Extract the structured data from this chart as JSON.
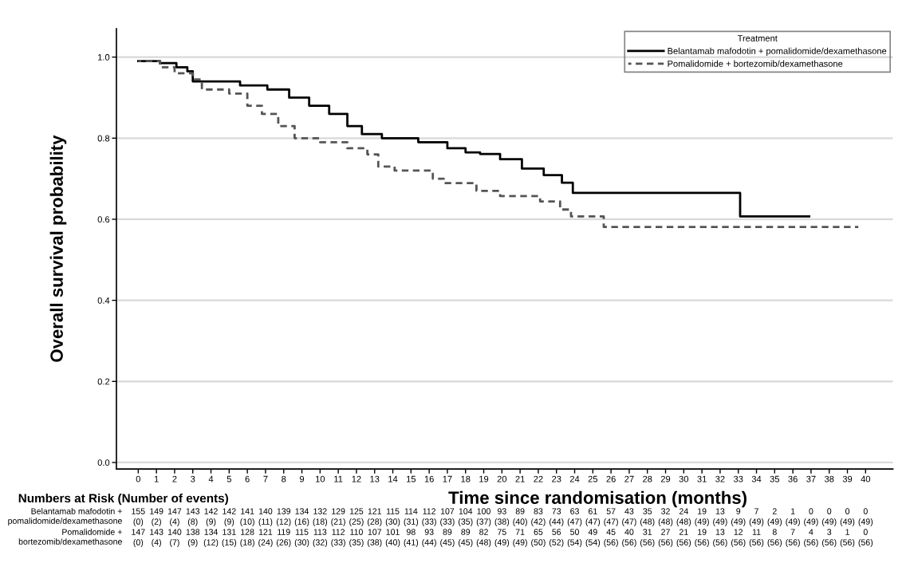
{
  "chart_data": {
    "type": "step",
    "xlabel": "Time since randomisation (months)",
    "ylabel": "Overall survival probability",
    "legend_title": "Treatment",
    "xlim": [
      -1.2,
      41.5
    ],
    "ylim": [
      -0.016,
      1.07
    ],
    "xticks": [
      0,
      1,
      2,
      3,
      4,
      5,
      6,
      7,
      8,
      9,
      10,
      11,
      12,
      13,
      14,
      15,
      16,
      17,
      18,
      19,
      20,
      21,
      22,
      23,
      24,
      25,
      26,
      27,
      28,
      29,
      30,
      31,
      32,
      33,
      34,
      35,
      36,
      37,
      38,
      39,
      40
    ],
    "yticks": [
      {
        "value": 0,
        "label": "0.0"
      },
      {
        "value": 0.2,
        "label": "0.2"
      },
      {
        "value": 0.4,
        "label": "0.4"
      },
      {
        "value": 0.6,
        "label": "0.6"
      },
      {
        "value": 0.8,
        "label": "0.8"
      },
      {
        "value": 1,
        "label": "1.0"
      }
    ],
    "grid": "y",
    "legend": "top right",
    "series": [
      {
        "name": "Belantamab mafodotin + pomalidomide/dexamethasone",
        "color": "#000000",
        "line_style": "solid",
        "x": [
          0,
          1.2,
          2.1,
          2.7,
          3,
          5.6,
          7.1,
          8.3,
          9.4,
          10.5,
          11.5,
          12.3,
          13.4,
          15.4,
          17,
          18,
          18.8,
          19.9,
          21.1,
          22.3,
          23.3,
          23.9,
          33.1,
          36.9
        ],
        "values": [
          0.99,
          0.985,
          0.975,
          0.965,
          0.94,
          0.93,
          0.92,
          0.9,
          0.88,
          0.86,
          0.83,
          0.81,
          0.8,
          0.79,
          0.775,
          0.765,
          0.761,
          0.748,
          0.725,
          0.709,
          0.69,
          0.665,
          0.607,
          0.607
        ]
      },
      {
        "name": "Pomalidomide + bortezomib/dexamethasone",
        "color": "#555555",
        "line_style": "dashed",
        "x": [
          0,
          1.2,
          2,
          3,
          3.5,
          5,
          6,
          6.8,
          7.7,
          8.6,
          10,
          11.5,
          12.6,
          13.2,
          14.1,
          16.2,
          16.8,
          18.6,
          19.9,
          22.1,
          23.2,
          23.8,
          25.6,
          39.6
        ],
        "values": [
          0.99,
          0.975,
          0.96,
          0.945,
          0.92,
          0.91,
          0.88,
          0.86,
          0.83,
          0.8,
          0.79,
          0.775,
          0.76,
          0.73,
          0.72,
          0.7,
          0.689,
          0.67,
          0.657,
          0.644,
          0.624,
          0.607,
          0.581,
          0.581
        ]
      }
    ],
    "annotations": [
      "Numbers at Risk (Number of events)",
      "Belantamab mafodotin +\npomalidomide/dexamethasone",
      "155 149 147 143 142 142 141 140 139 134 132 129 125 121 115 114 112 107 104 100 93 89 83 73 63 61 57 43 35 32 24 19 13 9 7 2 1 0 0 0 0",
      "(0) (2) (4) (8) (9) (9) (10) (11) (12) (16) (18) (21) (25) (28) (30) (31) (33) (33) (35) (37) (38) (40) (42) (44) (47) (47) (47) (47) (48) (48) (48) (49) (49) (49) (49) (49) (49) (49) (49) (49) (49)",
      "Pomalidomide +\nbortezomib/dexamethasone",
      "147 143 140 138 134 131 128 121 119 115 113 112 110 107 101 98 93 89 89 82 75 71 65 56 50 49 45 40 31 27 21 19 13 12 11 8 7 4 3 1 0",
      "(0) (4) (7) (9) (12) (15) (18) (24) (26) (30) (32) (33) (35) (38) (40) (41) (44) (45) (45) (48) (49) (49) (50) (52) (54) (54) (56) (56) (56) (56) (56) (56) (56) (56) (56) (56) (56) (56) (56) (56) (56)"
    ]
  }
}
